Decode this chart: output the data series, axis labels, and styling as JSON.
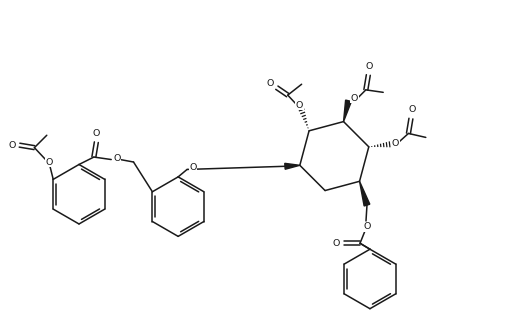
{
  "bg_color": "#ffffff",
  "line_color": "#1a1a1a",
  "lw": 1.1,
  "fig_width": 5.06,
  "fig_height": 3.27,
  "dpi": 100,
  "xlim": [
    0,
    10.12
  ],
  "ylim": [
    0,
    6.54
  ]
}
